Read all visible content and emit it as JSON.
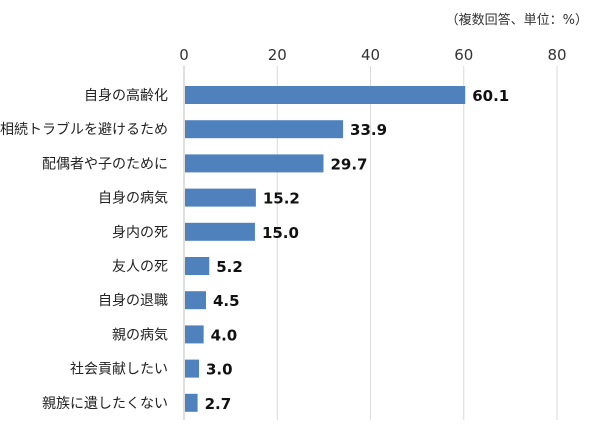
{
  "chart_data": {
    "type": "bar",
    "orientation": "horizontal",
    "unit_note": "（複数回答、単位：%）",
    "categories": [
      "自身の高齢化",
      "相続トラブルを避けるため",
      "配偶者や子のために",
      "自身の病気",
      "身内の死",
      "友人の死",
      "自身の退職",
      "親の病気",
      "社会貢献したい",
      "親族に遺したくない"
    ],
    "values": [
      60.1,
      33.9,
      29.7,
      15.2,
      15.0,
      5.2,
      4.5,
      4.0,
      3.0,
      2.7
    ],
    "value_labels": [
      "60.1",
      "33.9",
      "29.7",
      "15.2",
      "15.0",
      "5.2",
      "4.5",
      "4.0",
      "3.0",
      "2.7"
    ],
    "xlim": [
      0,
      80
    ],
    "xticks": [
      "0",
      "20",
      "40",
      "60",
      "80"
    ],
    "axis_position": "top",
    "grid": true,
    "bar_color": "#4f81bd",
    "grid_color": "#d9d9d9"
  }
}
